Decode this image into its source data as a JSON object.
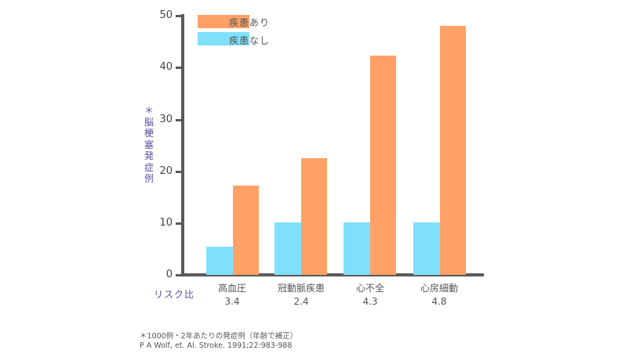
{
  "chart_data": {
    "type": "bar",
    "title": "",
    "xlabel": "",
    "ylabel": "＊脳梗塞発症例",
    "ylim": [
      0,
      50
    ],
    "yticks": [
      0,
      10,
      20,
      30,
      40,
      50
    ],
    "grid": false,
    "legend_position": "top-left",
    "categories": [
      "高血圧",
      "冠動脈疾患",
      "心不全",
      "心房細動"
    ],
    "risk_label": "リスク比",
    "risk_ratios": [
      "3.4",
      "2.4",
      "4.3",
      "4.8"
    ],
    "series": [
      {
        "name": "疾患なし",
        "color": "#7fe0fb",
        "values": [
          5.4,
          10.1,
          10.1,
          10.1
        ]
      },
      {
        "name": "疾患あり",
        "color": "#ffa166",
        "values": [
          17.2,
          22.5,
          42.3,
          48.0
        ]
      }
    ],
    "annotations": [
      "＊1000例・2年あたりの発症例（年齢で補正）",
      "P A Wolf, et. Al. Stroke. 1991;22:983-988"
    ]
  },
  "legend": {
    "with_disease": "疾患あり",
    "without_disease": "疾患なし"
  },
  "axis": {
    "ylabel_chars": [
      "＊",
      "脳",
      "梗",
      "塞",
      "発",
      "症",
      "例"
    ],
    "ticks": [
      "0",
      "10",
      "20",
      "30",
      "40",
      "50"
    ]
  },
  "categories": [
    {
      "name": "高血圧",
      "risk": "3.4"
    },
    {
      "name": "冠動脈疾患",
      "risk": "2.4"
    },
    {
      "name": "心不全",
      "risk": "4.3"
    },
    {
      "name": "心房細動",
      "risk": "4.8"
    }
  ],
  "risk_label": "リスク比",
  "footnote": "＊1000例・2年あたりの発症例（年齢で補正）",
  "citation": "P A Wolf, et. Al. Stroke. 1991;22:983-988"
}
